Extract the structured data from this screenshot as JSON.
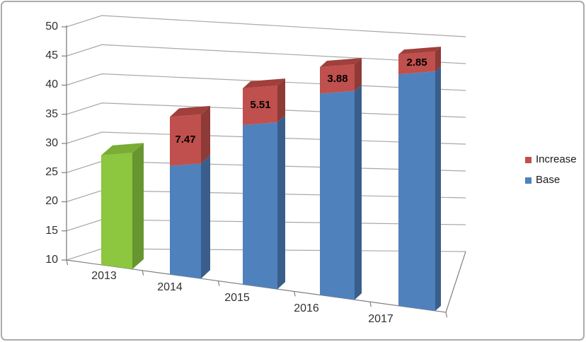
{
  "window": {
    "background": "#ffffff",
    "border_color": "#ababab"
  },
  "chart_data": {
    "type": "bar",
    "subtype": "3d-stacked-column",
    "title": "",
    "categories": [
      "2013",
      "2014",
      "2015",
      "2016",
      "2017"
    ],
    "series": [
      {
        "name": "Base",
        "color": "#4f81bd",
        "values": [
          27.0,
          27.0,
          34.47,
          39.98,
          43.86
        ]
      },
      {
        "name": "Increase",
        "color": "#c0504d",
        "values": [
          0,
          7.47,
          5.51,
          3.88,
          2.85
        ]
      }
    ],
    "data_labels": [
      "",
      "7.47",
      "5.51",
      "3.88",
      "2.85"
    ],
    "y_axis": {
      "min": 10,
      "max": 50,
      "step": 5,
      "tick_labels": [
        "50",
        "45",
        "40",
        "35",
        "30",
        "25",
        "20",
        "15",
        "10"
      ]
    },
    "legend": {
      "position": "right",
      "items": [
        {
          "label": "Increase",
          "color": "#c0504d"
        },
        {
          "label": "Base",
          "color": "#4f81bd"
        }
      ]
    },
    "grid": true,
    "colors": {
      "first_bar_front": "#8dc63f",
      "first_bar_side": "#679530",
      "first_bar_top": "#79ad36",
      "base_front": "#4f81bd",
      "base_side": "#395e8b",
      "increase_front": "#c0504d",
      "increase_side": "#8e3a37",
      "increase_top": "#a03f3c",
      "gridline": "#a8a8a8",
      "axis": "#7f7f7f"
    }
  }
}
